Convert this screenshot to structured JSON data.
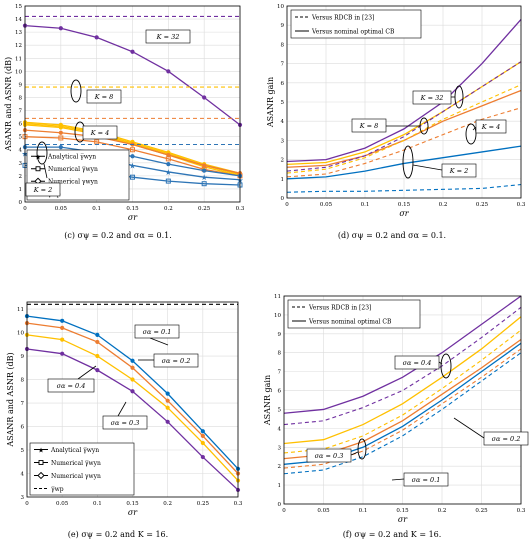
{
  "chart_data": [
    {
      "id": "c",
      "type": "line",
      "caption": "(c) σψ = 0.2 and σα = 0.1.",
      "xlabel": "σr",
      "ylabel": "ASANR and ASNR (dB)",
      "xlim": [
        0,
        0.3
      ],
      "ylim": [
        0,
        15
      ],
      "xticks": [
        "0",
        "0.05",
        "0.1",
        "0.15",
        "0.2",
        "0.25",
        "0.3"
      ],
      "yticks": [
        "0",
        "1",
        "2",
        "3",
        "4",
        "5",
        "6",
        "7",
        "8",
        "9",
        "10",
        "11",
        "12",
        "13",
        "14",
        "15"
      ],
      "x": [
        0,
        0.05,
        0.1,
        0.15,
        0.2,
        0.25,
        0.3
      ],
      "legend": {
        "placement": "bottom-left",
        "entries": [
          "Analytical γ̅wyn",
          "Numerical γ̅wyn",
          "Numerical γwyn",
          "γ̅wp"
        ]
      },
      "annotations": [
        "K = 32",
        "K = 8",
        "K = 4",
        "K = 2"
      ],
      "series": [
        {
          "color": "#7030a0",
          "marker": "circle",
          "values": [
            13.5,
            13.3,
            12.6,
            11.5,
            10.0,
            8.0,
            5.9
          ]
        },
        {
          "color": "#ffc000",
          "marker": "circle",
          "values": [
            6.1,
            5.9,
            5.4,
            4.6,
            3.8,
            2.9,
            2.2
          ]
        },
        {
          "color": "#ffc000",
          "marker": "circle",
          "values": [
            6.0,
            5.8,
            5.3,
            4.5,
            3.7,
            2.8,
            2.1
          ]
        },
        {
          "color": "#ffc000",
          "marker": "circle",
          "values": [
            5.9,
            5.7,
            5.2,
            4.4,
            3.6,
            2.7,
            2.0
          ]
        },
        {
          "color": "#ed7d31",
          "marker": "circle",
          "values": [
            5.5,
            5.3,
            5.0,
            4.4,
            3.6,
            2.8,
            2.2
          ]
        },
        {
          "color": "#ed7d31",
          "marker": "square",
          "values": [
            5.0,
            4.9,
            4.6,
            4.0,
            3.3,
            2.5,
            2.0
          ]
        },
        {
          "color": "#2e75b6",
          "marker": "circle",
          "values": [
            4.2,
            4.2,
            3.8,
            3.5,
            2.9,
            2.4,
            2.0
          ]
        },
        {
          "color": "#2e75b6",
          "marker": "star",
          "values": [
            3.7,
            3.6,
            3.4,
            2.8,
            2.3,
            1.9,
            1.7
          ]
        },
        {
          "color": "#2e75b6",
          "marker": "square",
          "values": [
            2.8,
            2.6,
            2.3,
            1.9,
            1.6,
            1.4,
            1.3
          ]
        },
        {
          "color": "#7030a0",
          "dashed": true,
          "values": [
            14.2,
            14.2,
            14.2,
            14.2,
            14.2,
            14.2,
            14.2
          ]
        },
        {
          "color": "#ffc000",
          "dashed": true,
          "values": [
            8.8,
            8.8,
            8.8,
            8.8,
            8.8,
            8.8,
            8.8
          ]
        },
        {
          "color": "#ed7d31",
          "dashed": true,
          "values": [
            6.4,
            6.4,
            6.4,
            6.4,
            6.4,
            6.4,
            6.4
          ]
        },
        {
          "color": "#2e75b6",
          "dashed": true,
          "values": [
            4.4,
            4.4,
            4.4,
            4.4,
            4.4,
            4.4,
            4.4
          ]
        }
      ]
    },
    {
      "id": "d",
      "type": "line",
      "caption": "(d) σψ = 0.2 and σα = 0.1.",
      "xlabel": "σr",
      "ylabel": "ASANR gain",
      "xlim": [
        0,
        0.3
      ],
      "ylim": [
        0,
        10
      ],
      "xticks": [
        "0",
        "0.05",
        "0.1",
        "0.15",
        "0.2",
        "0.25",
        "0.3"
      ],
      "yticks": [
        "0",
        "1",
        "2",
        "3",
        "4",
        "5",
        "6",
        "7",
        "8",
        "9",
        "10"
      ],
      "x": [
        0,
        0.05,
        0.1,
        0.15,
        0.2,
        0.25,
        0.3
      ],
      "legend": {
        "placement": "top-left",
        "entries": [
          "Versus RDCB in [23]",
          "Versus nominal optimal CB"
        ]
      },
      "annotations": [
        "K = 32",
        "K = 8",
        "K = 4",
        "K = 2"
      ],
      "series": [
        {
          "color": "#7030a0",
          "values": [
            1.9,
            2.0,
            2.6,
            3.6,
            5.0,
            7.0,
            9.3
          ]
        },
        {
          "color": "#ffc000",
          "values": [
            1.75,
            1.85,
            2.4,
            3.3,
            4.5,
            5.8,
            7.1
          ]
        },
        {
          "color": "#ed7d31",
          "values": [
            1.6,
            1.7,
            2.2,
            3.0,
            4.0,
            4.8,
            5.6
          ]
        },
        {
          "color": "#0070c0",
          "values": [
            1.0,
            1.1,
            1.4,
            1.8,
            2.1,
            2.4,
            2.7
          ]
        },
        {
          "color": "#7030a0",
          "dashed": true,
          "values": [
            1.4,
            1.6,
            2.2,
            3.2,
            4.5,
            5.8,
            7.1
          ]
        },
        {
          "color": "#ffc000",
          "dashed": true,
          "values": [
            1.3,
            1.5,
            2.1,
            3.0,
            4.1,
            5.0,
            5.9
          ]
        },
        {
          "color": "#ed7d31",
          "dashed": true,
          "values": [
            1.1,
            1.25,
            1.8,
            2.5,
            3.3,
            4.1,
            4.7
          ]
        },
        {
          "color": "#0070c0",
          "dashed": true,
          "values": [
            0.3,
            0.35,
            0.35,
            0.4,
            0.45,
            0.5,
            0.7
          ]
        }
      ]
    },
    {
      "id": "e",
      "type": "line",
      "caption": "(e) σψ = 0.2 and K = 16.",
      "xlabel": "σr",
      "ylabel": "ASANR and ASNR (dB)",
      "xlim": [
        0,
        0.3
      ],
      "ylim": [
        3,
        11.3
      ],
      "xticks": [
        "0",
        "0.05",
        "0.1",
        "0.15",
        "0.2",
        "0.25",
        "0.3"
      ],
      "yticks": [
        "3",
        "4",
        "5",
        "6",
        "7",
        "8",
        "9",
        "10",
        "11"
      ],
      "x": [
        0,
        0.05,
        0.1,
        0.15,
        0.2,
        0.25,
        0.3
      ],
      "legend": {
        "placement": "bottom-left",
        "entries": [
          "Analytical γ̅wyn",
          "Numerical γ̅wyn",
          "Numerical γwyn",
          "γ̅wp"
        ]
      },
      "annotations": [
        "σα = 0.1",
        "σα = 0.2",
        "σα = 0.4",
        "σα = 0.3"
      ],
      "series": [
        {
          "color": "#0070c0",
          "marker": "circle",
          "values": [
            10.7,
            10.5,
            9.9,
            8.8,
            7.4,
            5.8,
            4.2
          ]
        },
        {
          "color": "#ed7d31",
          "marker": "circle",
          "values": [
            10.4,
            10.2,
            9.6,
            8.5,
            7.1,
            5.6,
            4.0
          ]
        },
        {
          "color": "#ffc000",
          "marker": "circle",
          "values": [
            9.9,
            9.7,
            9.0,
            8.0,
            6.8,
            5.3,
            3.7
          ]
        },
        {
          "color": "#7030a0",
          "marker": "circle",
          "values": [
            9.3,
            9.1,
            8.4,
            7.5,
            6.2,
            4.7,
            3.3
          ]
        },
        {
          "color": "#000000",
          "dashed": true,
          "values": [
            11.2,
            11.2,
            11.2,
            11.2,
            11.2,
            11.2,
            11.2
          ]
        }
      ]
    },
    {
      "id": "f",
      "type": "line",
      "caption": "(f) σψ = 0.2 and K = 16.",
      "xlabel": "σr",
      "ylabel": "ASANR gain",
      "xlim": [
        0,
        0.3
      ],
      "ylim": [
        0,
        11
      ],
      "xticks": [
        "0",
        "0.05",
        "0.1",
        "0.15",
        "0.2",
        "0.25",
        "0.3"
      ],
      "yticks": [
        "0",
        "1",
        "2",
        "3",
        "4",
        "5",
        "6",
        "7",
        "8",
        "9",
        "10",
        "11"
      ],
      "x": [
        0,
        0.05,
        0.1,
        0.15,
        0.2,
        0.25,
        0.3
      ],
      "legend": {
        "placement": "top-left",
        "entries": [
          "Versus RDCB in [23]",
          "Versus nominal optimal CB"
        ]
      },
      "annotations": [
        "σα = 0.4",
        "σα = 0.3",
        "σα = 0.2",
        "σα = 0.1"
      ],
      "series": [
        {
          "color": "#7030a0",
          "values": [
            4.8,
            5.0,
            5.7,
            6.7,
            8.0,
            9.5,
            11.0
          ]
        },
        {
          "color": "#ffc000",
          "values": [
            3.2,
            3.4,
            4.2,
            5.3,
            6.7,
            8.2,
            9.9
          ]
        },
        {
          "color": "#ed7d31",
          "values": [
            2.4,
            2.6,
            3.3,
            4.4,
            5.8,
            7.2,
            8.7
          ]
        },
        {
          "color": "#0070c0",
          "values": [
            2.1,
            2.3,
            3.0,
            4.1,
            5.5,
            7.0,
            8.5
          ]
        },
        {
          "color": "#7030a0",
          "dashed": true,
          "values": [
            4.2,
            4.4,
            5.1,
            6.0,
            7.3,
            8.8,
            10.4
          ]
        },
        {
          "color": "#ffc000",
          "dashed": true,
          "values": [
            2.7,
            2.9,
            3.6,
            4.7,
            6.1,
            7.6,
            9.2
          ]
        },
        {
          "color": "#ed7d31",
          "dashed": true,
          "values": [
            1.9,
            2.1,
            2.8,
            3.9,
            5.3,
            6.7,
            8.2
          ]
        },
        {
          "color": "#0070c0",
          "dashed": true,
          "values": [
            1.6,
            1.8,
            2.5,
            3.6,
            5.0,
            6.5,
            8.0
          ]
        }
      ]
    }
  ]
}
